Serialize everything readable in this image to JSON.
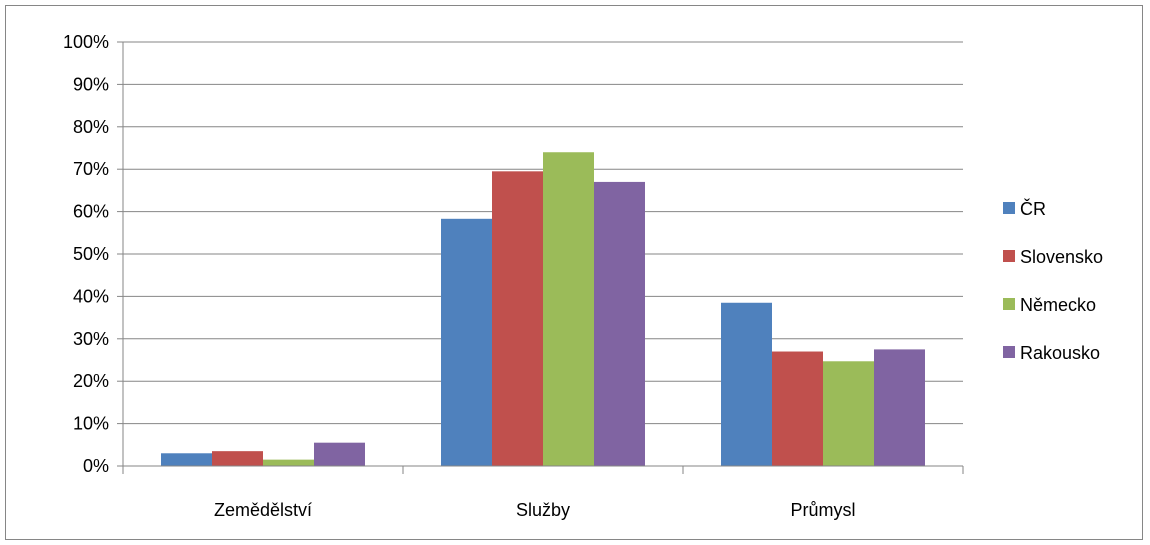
{
  "chart_data": {
    "type": "bar",
    "categories": [
      "Zemědělství",
      "Služby",
      "Průmysl"
    ],
    "series": [
      {
        "name": "ČR",
        "color": "#4F81BD",
        "values": [
          3.0,
          58.3,
          38.5
        ]
      },
      {
        "name": "Slovensko",
        "color": "#C0504D",
        "values": [
          3.5,
          69.5,
          27.0
        ]
      },
      {
        "name": "Německo",
        "color": "#9BBB59",
        "values": [
          1.5,
          74.0,
          24.7
        ]
      },
      {
        "name": "Rakousko",
        "color": "#8064A2",
        "values": [
          5.5,
          67.0,
          27.5
        ]
      }
    ],
    "y_ticks": [
      "0%",
      "10%",
      "20%",
      "30%",
      "40%",
      "50%",
      "60%",
      "70%",
      "80%",
      "90%",
      "100%"
    ],
    "ylim": [
      0,
      100
    ],
    "grid": true,
    "legend_position": "right"
  }
}
